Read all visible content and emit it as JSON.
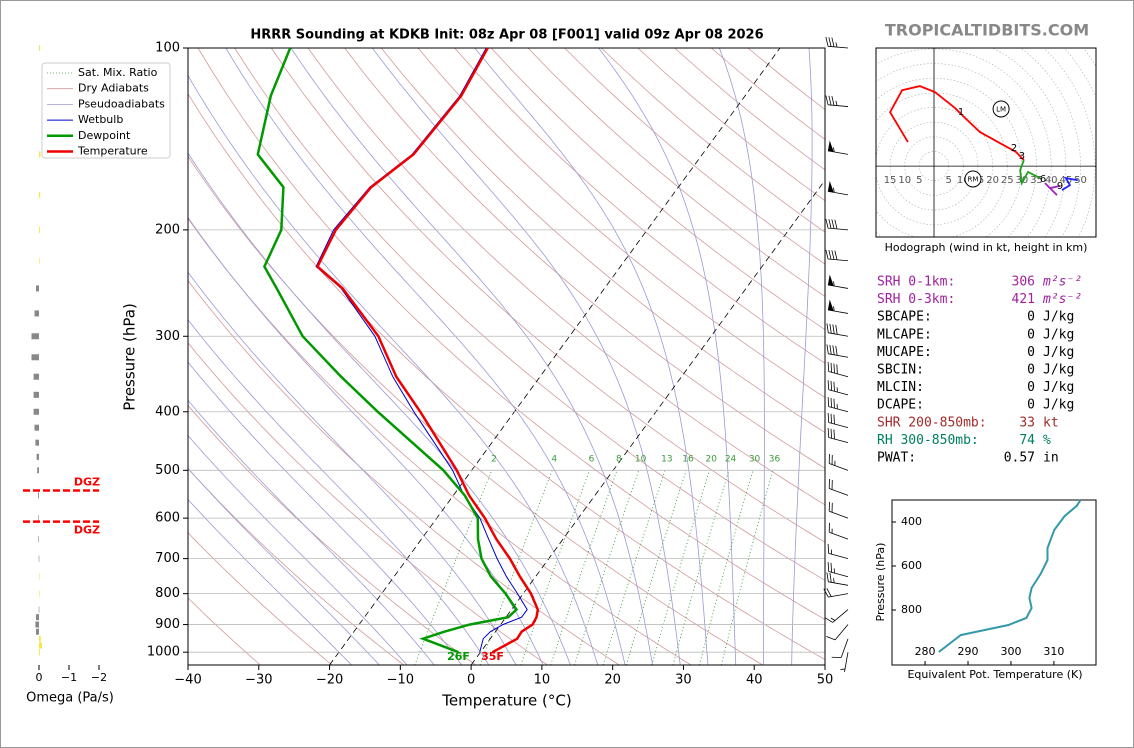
{
  "brand": "TROPICALTIDBITS.COM",
  "indices": [
    {
      "label": "SRH 0-1km:",
      "value": 306,
      "unit": "m²s⁻²",
      "color": "#a020a0"
    },
    {
      "label": "SRH 0-3km:",
      "value": 421,
      "unit": "m²s⁻²",
      "color": "#a020a0"
    },
    {
      "label": "SBCAPE:",
      "value": 0,
      "unit": "J/kg",
      "color": "#000000"
    },
    {
      "label": "MLCAPE:",
      "value": 0,
      "unit": "J/kg",
      "color": "#000000"
    },
    {
      "label": "MUCAPE:",
      "value": 0,
      "unit": "J/kg",
      "color": "#000000"
    },
    {
      "label": "SBCIN:",
      "value": 0,
      "unit": "J/kg",
      "color": "#000000"
    },
    {
      "label": "MLCIN:",
      "value": 0,
      "unit": "J/kg",
      "color": "#000000"
    },
    {
      "label": "DCAPE:",
      "value": 0,
      "unit": "J/kg",
      "color": "#000000"
    },
    {
      "label": "SHR 200-850mb:",
      "value": 33,
      "unit": "kt",
      "color": "#a52a2a"
    },
    {
      "label": "RH 300-850mb:",
      "value": 74,
      "unit": "%",
      "color": "#008060"
    },
    {
      "label": "PWAT:",
      "value": 0.57,
      "unit": "in",
      "color": "#000000"
    }
  ],
  "chart_data": [
    {
      "type": "skewt",
      "title": "HRRR Sounding at KDKB Init: 08z Apr 08 [F001] valid 09z Apr 08 2026",
      "xlabel": "Temperature (°C)",
      "ylabel": "Pressure (hPa)",
      "xlim": [
        -40,
        50
      ],
      "ylim": [
        1050,
        100
      ],
      "xticks": [
        {
          "value": -40,
          "label": "−40"
        },
        {
          "value": -30,
          "label": "−30"
        },
        {
          "value": -20,
          "label": "−20"
        },
        {
          "value": -10,
          "label": "−10"
        },
        0,
        10,
        20,
        30,
        40,
        50
      ],
      "yticks": [
        100,
        200,
        300,
        400,
        500,
        600,
        700,
        800,
        900,
        1000
      ],
      "grid": true,
      "legend": "upper left",
      "pressure": [
        1000,
        950,
        925,
        900,
        875,
        850,
        800,
        750,
        700,
        650,
        600,
        550,
        500,
        400,
        350,
        300,
        250,
        230,
        200,
        170,
        150,
        120,
        100
      ],
      "series": [
        {
          "name": "Wetbulb",
          "color": "#0000cc",
          "values": [
            -0.1,
            -1,
            -0.7,
            0.3,
            2.2,
            2.2,
            -0.8,
            -4.1,
            -7.3,
            -10.5,
            -13.9,
            -18.5,
            -22.7,
            -34.2,
            -40.8,
            -47.5,
            -57.2,
            -63,
            -64.3,
            -63.6,
            -61,
            -60.3,
            -61.5
          ]
        },
        {
          "name": "Dewpoint",
          "color": "#009900",
          "surface_label": "26F",
          "values": [
            -3.1,
            -9.5,
            -7.2,
            -4.4,
            0.3,
            0.7,
            -2.5,
            -6.3,
            -9.5,
            -12,
            -14.2,
            -18.4,
            -24,
            -39.3,
            -48.1,
            -57.7,
            -66.3,
            -70.3,
            -71.7,
            -75.8,
            -82.8,
            -87,
            -89.2
          ]
        },
        {
          "name": "Temperature",
          "color": "#ee0000",
          "surface_label": "35F",
          "values": [
            1.7,
            3.8,
            3.7,
            4.5,
            4.3,
            3.7,
            1.1,
            -2.2,
            -5.5,
            -9.4,
            -13.2,
            -17.8,
            -22.1,
            -33.3,
            -40.3,
            -47,
            -57,
            -62.8,
            -64,
            -63.4,
            -60.8,
            -60.1,
            -61.3
          ]
        }
      ],
      "background_lines": [
        {
          "name": "Sat. Mix. Ratio",
          "color": "#3a9a3a",
          "style": "dotted"
        },
        {
          "name": "Dry Adiabats",
          "color": "#d49a9a",
          "style": "solid"
        },
        {
          "name": "Pseudoadiabats",
          "color": "#9a9ad4",
          "style": "solid"
        }
      ],
      "mixing_ratios": [
        2,
        4,
        6,
        8,
        10,
        13,
        16,
        20,
        24,
        30,
        36
      ],
      "highlight_isotherms": [
        -20,
        0
      ],
      "wind": {
        "pressure": [
          100,
          125,
          150,
          175,
          200,
          225,
          250,
          275,
          300,
          325,
          350,
          375,
          400,
          425,
          450,
          500,
          550,
          600,
          650,
          700,
          750,
          775,
          800,
          850,
          900,
          950,
          1000
        ],
        "speed": [
          35,
          35,
          55,
          55,
          40,
          40,
          55,
          55,
          40,
          40,
          40,
          35,
          35,
          30,
          30,
          25,
          20,
          20,
          15,
          15,
          25,
          25,
          20,
          15,
          10,
          10,
          5
        ],
        "direction": [
          275,
          275,
          280,
          280,
          275,
          275,
          280,
          280,
          280,
          280,
          285,
          285,
          285,
          285,
          285,
          290,
          290,
          290,
          290,
          285,
          285,
          280,
          260,
          230,
          220,
          200,
          190
        ]
      }
    },
    {
      "type": "hodograph",
      "caption": "Hodograph (wind in kt, height in km)",
      "xlim": [
        -19.8,
        55.3
      ],
      "ylim": [
        -24.2,
        40.3
      ],
      "ring_labels": [
        {
          "value": -15,
          "label": "15"
        },
        {
          "value": -10,
          "label": "10"
        },
        {
          "value": -5,
          "label": "5"
        },
        5,
        10,
        15,
        20,
        25,
        30,
        35,
        40,
        45,
        50
      ],
      "series": [
        {
          "color": "#ff0000",
          "u": [
            -8.9,
            -15,
            -10.9,
            -4.8,
            0.3,
            7.2,
            9.9,
            15.7,
            28,
            30.7
          ],
          "v": [
            8.2,
            18.4,
            25.9,
            27.3,
            25.3,
            19.8,
            17.1,
            11.6,
            4.8,
            2
          ],
          "height_labels": [
            null,
            null,
            null,
            null,
            null,
            null,
            1,
            null,
            2,
            3
          ]
        },
        {
          "color": "#20a020",
          "u": [
            30.7,
            29.4,
            30,
            32.1,
            36.2
          ],
          "v": [
            2,
            -1.4,
            -5.8,
            -2,
            -4.1
          ],
          "height_labels": [
            null,
            null,
            null,
            null,
            null
          ]
        },
        {
          "color": "#a020c0",
          "u": [
            37.9,
            42,
            39.6,
            43
          ],
          "v": [
            -5.8,
            -9.9,
            -7.5,
            -6.8
          ],
          "height_labels": [
            6,
            null,
            null,
            null
          ]
        },
        {
          "color": "#2020ff",
          "u": [
            43.7,
            46.4,
            45,
            49.1
          ],
          "v": [
            -8.2,
            -6.5,
            -4.1,
            -4.8
          ],
          "height_labels": [
            9,
            null,
            null,
            null
          ]
        }
      ],
      "storm_motion": [
        {
          "label": "LM",
          "u": 22.9,
          "v": 19.5
        },
        {
          "label": "RM",
          "u": 13.3,
          "v": -4.4
        }
      ]
    },
    {
      "type": "omega",
      "xlabel": "Omega (Pa/s)",
      "xlim": [
        0.6,
        -2.2
      ],
      "ylim": [
        1050,
        100
      ],
      "xticks": [
        0,
        {
          "value": -1,
          "label": "−1"
        },
        {
          "value": -2,
          "label": "−2"
        }
      ],
      "positive_color": "#888888",
      "negative_color": "#f5e642",
      "pressure": [
        100,
        150,
        175,
        200,
        225,
        250,
        275,
        300,
        325,
        350,
        375,
        400,
        425,
        450,
        475,
        500,
        550,
        600,
        650,
        700,
        750,
        800,
        850,
        875,
        900,
        925,
        950,
        975,
        1000
      ],
      "values": [
        -0.03,
        -0.05,
        -0.04,
        -0.03,
        -0.02,
        0.1,
        0.15,
        0.25,
        0.25,
        0.18,
        0.18,
        0.18,
        0.15,
        0.12,
        0.08,
        0.06,
        0.03,
        0.02,
        0.02,
        0.01,
        -0.01,
        -0.02,
        0.01,
        0.1,
        0.12,
        0.1,
        -0.06,
        -0.1,
        -0.03
      ],
      "dgz": {
        "label": "DGZ",
        "pressure": [
          540,
          608
        ],
        "color": "#ff0000"
      }
    },
    {
      "type": "line",
      "xlabel": "Equivalent Pot. Temperature (K)",
      "ylabel": "Pressure (hPa)",
      "color": "#3399aa",
      "xlim": [
        272.3,
        319.8
      ],
      "ylim": [
        1050,
        300
      ],
      "xticks": [
        280,
        290,
        300,
        310
      ],
      "yticks": [
        400,
        600,
        800
      ],
      "pressure": [
        991,
        914,
        868,
        836,
        791,
        745,
        700,
        636,
        573,
        518,
        436,
        373,
        327,
        300
      ],
      "values": [
        283.2,
        288.3,
        299.4,
        303.6,
        304.8,
        304.3,
        304.8,
        306.9,
        308.5,
        308.5,
        310.1,
        312.5,
        315.3,
        316.2
      ]
    }
  ]
}
